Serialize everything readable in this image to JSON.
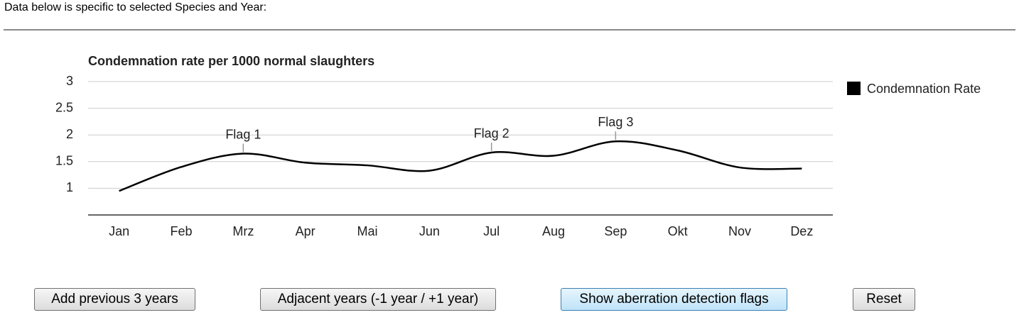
{
  "header": {
    "text": "Data below is specific to selected Species and Year:"
  },
  "chart_data": {
    "type": "line",
    "title": "Condemnation rate per 1000 normal slaughters",
    "categories": [
      "Jan",
      "Feb",
      "Mrz",
      "Apr",
      "Mai",
      "Jun",
      "Jul",
      "Aug",
      "Sep",
      "Okt",
      "Nov",
      "Dez"
    ],
    "series": [
      {
        "name": "Condemnation Rate",
        "color": "#000000",
        "values": [
          0.95,
          1.4,
          1.65,
          1.48,
          1.43,
          1.33,
          1.67,
          1.61,
          1.88,
          1.71,
          1.39,
          1.37
        ]
      }
    ],
    "ylim": [
      0.5,
      3
    ],
    "yticks": [
      1,
      1.5,
      2,
      2.5,
      3
    ],
    "grid": true,
    "legend": "right",
    "annotations": [
      {
        "x": "Mrz",
        "text": "Flag 1"
      },
      {
        "x": "Jul",
        "text": "Flag 2"
      },
      {
        "x": "Sep",
        "text": "Flag 3"
      }
    ]
  },
  "buttons": [
    "Add previous 3 years",
    "Adjacent years (-1 year / +1 year)",
    "Show aberration detection flags",
    "Reset"
  ]
}
